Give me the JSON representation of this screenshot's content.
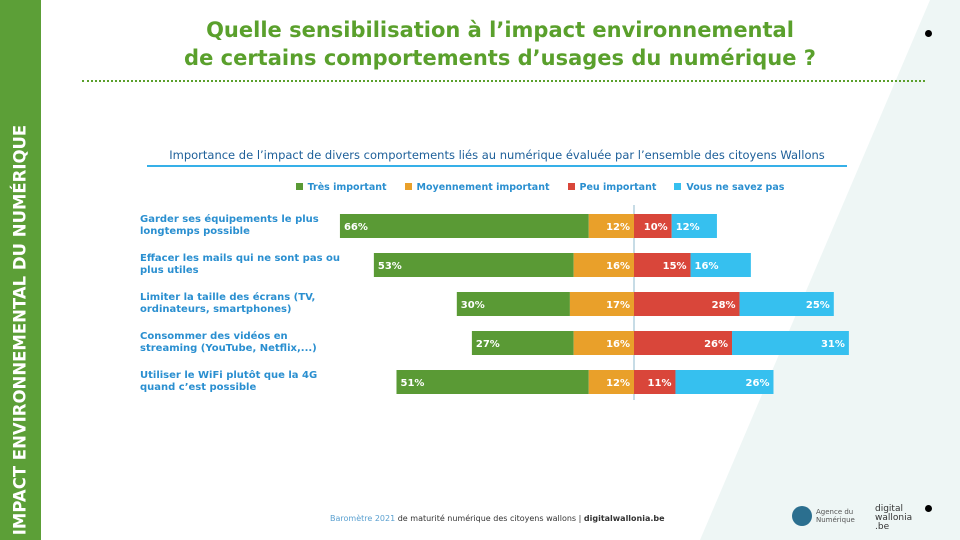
{
  "sidebar": {
    "text": "IMPACT ENVIRONNEMENTAL DU NUMÉRIQUE"
  },
  "title": {
    "line1": "Quelle sensibilisation à l’impact environnemental",
    "line2": "de certains comportements d’usages du numérique ?"
  },
  "colors": {
    "tres": "#5a9a35",
    "moyen": "#e9a02a",
    "peu": "#d9463a",
    "nsp": "#36c0ef",
    "title": "#5aa02c"
  },
  "chart_data": {
    "type": "bar",
    "orientation": "horizontal-diverging",
    "title": "Importance de l’impact de divers comportements liés au numérique évaluée par l’ensemble des citoyens Wallons",
    "legend_position": "top",
    "categories": [
      "Garder ses équipements le plus longtemps possible",
      "Effacer les mails qui ne sont pas ou plus utiles",
      "Limiter la taille des écrans (TV, ordinateurs, smartphones)",
      "Consommer des vidéos en streaming (YouTube, Netflix,...)",
      "Utiliser le WiFi plutôt que la 4G quand c’est possible"
    ],
    "series": [
      {
        "name": "Très important",
        "values": [
          66,
          53,
          30,
          27,
          51
        ]
      },
      {
        "name": "Moyennement important",
        "values": [
          12,
          16,
          17,
          16,
          12
        ]
      },
      {
        "name": "Peu important",
        "values": [
          10,
          15,
          28,
          26,
          11
        ]
      },
      {
        "name": "Vous ne savez pas",
        "values": [
          12,
          16,
          25,
          31,
          26
        ]
      }
    ],
    "unit": "%"
  },
  "footer": {
    "brand": "Baromètre 2021",
    "text": " de maturité numérique des citoyens wallons | ",
    "site": "digitalwallonia.be"
  },
  "logos": {
    "agence": "Agence du Numérique",
    "dw": "digital wallonia .be"
  }
}
